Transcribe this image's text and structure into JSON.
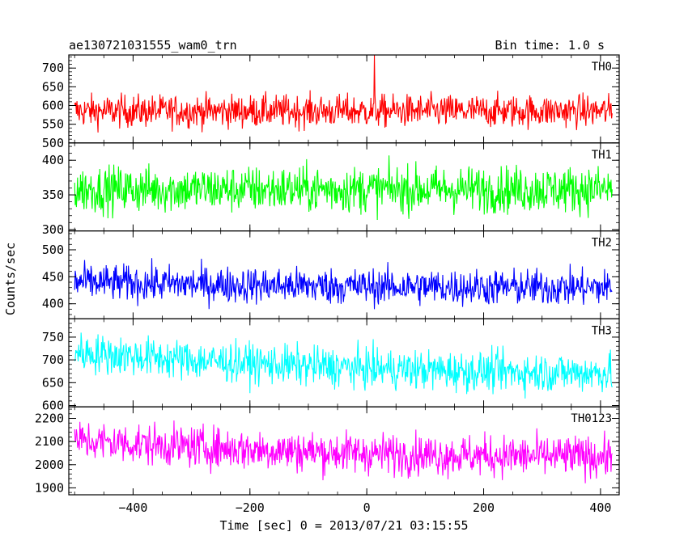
{
  "header": {
    "left_title": "ae130721031555_wam0_trn",
    "right_title": "Bin time: 1.0 s"
  },
  "chart_data": {
    "type": "line",
    "title": "ae130721031555_wam0_trn",
    "subtitle": "Bin time: 1.0 s",
    "xlabel": "Time [sec] 0 = 2013/07/21 03:15:55",
    "ylabel": "Counts/sec",
    "xlim": [
      -510,
      432
    ],
    "x_ticks": [
      -400,
      -200,
      0,
      200,
      400
    ],
    "x_tick_labels": [
      "−400",
      "−200",
      "0",
      "200",
      "400"
    ],
    "x_range_data": [
      -500,
      420
    ],
    "grid": false,
    "panels": [
      {
        "name": "TH0",
        "color": "#ff0000",
        "ylim": [
          500,
          735
        ],
        "y_ticks": [
          500,
          550,
          600,
          650,
          700
        ],
        "mean": 585,
        "noise": 22,
        "trend": 0,
        "spike": {
          "x": 13,
          "y": 735
        }
      },
      {
        "name": "TH1",
        "color": "#00ff00",
        "ylim": [
          298,
          425
        ],
        "y_ticks": [
          300,
          350,
          400
        ],
        "mean": 358,
        "noise": 17,
        "trend": 0
      },
      {
        "name": "TH2",
        "color": "#0000ff",
        "ylim": [
          372,
          535
        ],
        "y_ticks": [
          400,
          450,
          500
        ],
        "mean": 430,
        "noise": 17,
        "trend": 10
      },
      {
        "name": "TH3",
        "color": "#00ffff",
        "ylim": [
          597,
          790
        ],
        "y_ticks": [
          600,
          650,
          700,
          750
        ],
        "mean": 672,
        "noise": 22,
        "trend": 45
      },
      {
        "name": "TH0123",
        "color": "#ff00ff",
        "ylim": [
          1870,
          2250
        ],
        "y_ticks": [
          1900,
          2000,
          2100,
          2200
        ],
        "mean": 2035,
        "noise": 45,
        "trend": 70
      }
    ]
  }
}
